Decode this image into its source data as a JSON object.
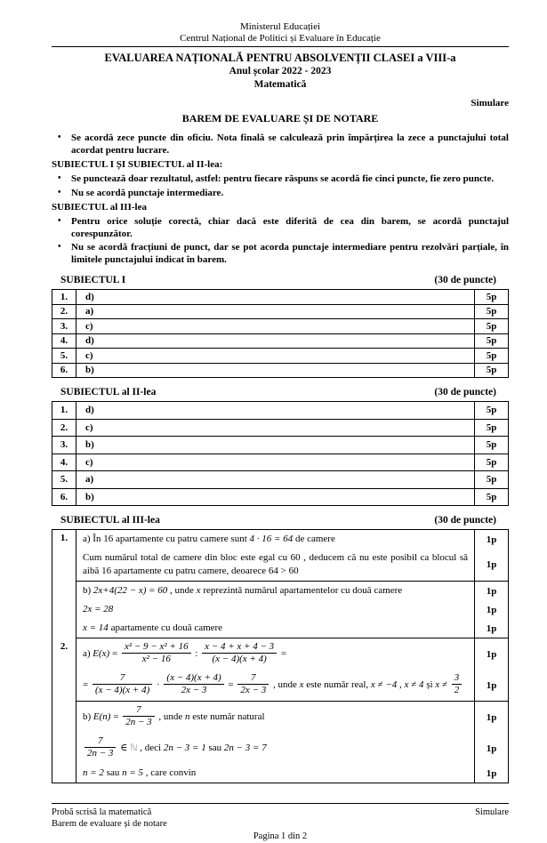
{
  "header": {
    "ministry": "Ministerul Educației",
    "center": "Centrul Național de Politici și Evaluare în Educație",
    "title": "EVALUAREA NAȚIONALĂ PENTRU ABSOLVENȚII CLASEI a VIII-a",
    "school_year": "Anul școlar 2022 - 2023",
    "subject": "Matematică",
    "session": "Simulare",
    "barem_title": "BAREM DE EVALUARE ȘI DE NOTARE"
  },
  "instructions": [
    {
      "type": "bullet",
      "text": "Se acordă zece puncte din oficiu. Nota finală se calculează prin împărțirea la zece a punctajului total acordat pentru lucrare."
    },
    {
      "type": "heading",
      "text": "SUBIECTUL I ȘI SUBIECTUL al II-lea:"
    },
    {
      "type": "bullet",
      "text": "Se punctează doar rezultatul, astfel: pentru fiecare răspuns se acordă fie cinci puncte, fie zero puncte."
    },
    {
      "type": "bullet",
      "text": "Nu se acordă punctaje intermediare."
    },
    {
      "type": "heading",
      "text": "SUBIECTUL al III-lea"
    },
    {
      "type": "bullet",
      "text": "Pentru orice soluție corectă, chiar dacă este diferită de cea din barem, se acordă punctajul corespunzător."
    },
    {
      "type": "bullet",
      "text": "Nu se acordă fracțiuni de punct, dar se pot acorda punctaje intermediare pentru rezolvări parțiale, în limitele punctajului indicat în barem."
    }
  ],
  "subject1": {
    "title": "SUBIECTUL I",
    "points_label": "(30 de puncte)",
    "rows": [
      {
        "no": "1.",
        "answer": "d)",
        "points": "5p"
      },
      {
        "no": "2.",
        "answer": "a)",
        "points": "5p"
      },
      {
        "no": "3.",
        "answer": "c)",
        "points": "5p"
      },
      {
        "no": "4.",
        "answer": "d)",
        "points": "5p"
      },
      {
        "no": "5.",
        "answer": "c)",
        "points": "5p"
      },
      {
        "no": "6.",
        "answer": "b)",
        "points": "5p"
      }
    ]
  },
  "subject2": {
    "title": "SUBIECTUL al II-lea",
    "points_label": "(30 de puncte)",
    "rows": [
      {
        "no": "1.",
        "answer": "d)",
        "points": "5p"
      },
      {
        "no": "2.",
        "answer": "c)",
        "points": "5p"
      },
      {
        "no": "3.",
        "answer": "b)",
        "points": "5p"
      },
      {
        "no": "4.",
        "answer": "c)",
        "points": "5p"
      },
      {
        "no": "5.",
        "answer": "a)",
        "points": "5p"
      },
      {
        "no": "6.",
        "answer": "b)",
        "points": "5p"
      }
    ]
  },
  "subject3": {
    "title": "SUBIECTUL al III-lea",
    "points_label": "(30 de puncte)",
    "items": [
      {
        "no": "1.",
        "blocks": [
          {
            "lines": [
              {
                "points": "1p",
                "parts": [
                  {
                    "t": "x",
                    "v": "a) În 16 apartamente cu patru camere sunt "
                  },
                  {
                    "t": "m",
                    "v": "4 · 16 = 64"
                  },
                  {
                    "t": "x",
                    "v": " de camere"
                  }
                ]
              },
              {
                "points": "1p",
                "justify": true,
                "parts": [
                  {
                    "t": "x",
                    "v": "Cum numărul total de camere din bloc este egal cu 60 , deducem că nu este posibil ca blocul să aibă 16 apartamente cu patru camere, deoarece 64 > 60"
                  }
                ]
              }
            ]
          },
          {
            "lines": [
              {
                "points": "1p",
                "parts": [
                  {
                    "t": "x",
                    "v": "b) "
                  },
                  {
                    "t": "m",
                    "v": "2x+4(22 − x) = 60"
                  },
                  {
                    "t": "x",
                    "v": " , unde  "
                  },
                  {
                    "t": "m",
                    "v": "x"
                  },
                  {
                    "t": "x",
                    "v": "  reprezintă numărul apartamentelor cu două camere"
                  }
                ]
              },
              {
                "points": "1p",
                "parts": [
                  {
                    "t": "m",
                    "v": "2x = 28"
                  }
                ]
              },
              {
                "points": "1p",
                "parts": [
                  {
                    "t": "m",
                    "v": "x = 14"
                  },
                  {
                    "t": "x",
                    "v": " apartamente cu două camere"
                  }
                ]
              }
            ]
          }
        ]
      },
      {
        "no": "2.",
        "blocks": [
          {
            "lines": [
              {
                "points": "1p",
                "parts": [
                  {
                    "t": "x",
                    "v": "a) "
                  },
                  {
                    "t": "m",
                    "v": "E(x)"
                  },
                  {
                    "t": "x",
                    "v": " = "
                  },
                  {
                    "t": "f",
                    "n": "x² − 9 − x² + 16",
                    "d": "x² − 16"
                  },
                  {
                    "t": "x",
                    "v": " : "
                  },
                  {
                    "t": "f",
                    "n": "x − 4 + x + 4 − 3",
                    "d": "(x − 4)(x + 4)"
                  },
                  {
                    "t": "x",
                    "v": " ="
                  }
                ]
              },
              {
                "points": "1p",
                "parts": [
                  {
                    "t": "x",
                    "v": "= "
                  },
                  {
                    "t": "f",
                    "n": "7",
                    "d": "(x − 4)(x + 4)"
                  },
                  {
                    "t": "x",
                    "v": " · "
                  },
                  {
                    "t": "f",
                    "n": "(x − 4)(x + 4)",
                    "d": "2x − 3"
                  },
                  {
                    "t": "x",
                    "v": " = "
                  },
                  {
                    "t": "f",
                    "n": "7",
                    "d": "2x − 3"
                  },
                  {
                    "t": "x",
                    "v": " ,  unde  "
                  },
                  {
                    "t": "m",
                    "v": "x"
                  },
                  {
                    "t": "x",
                    "v": "  este număr real,  "
                  },
                  {
                    "t": "m",
                    "v": "x ≠ −4"
                  },
                  {
                    "t": "x",
                    "v": " ,   "
                  },
                  {
                    "t": "m",
                    "v": "x ≠ 4"
                  },
                  {
                    "t": "x",
                    "v": "  și  "
                  },
                  {
                    "t": "m",
                    "v": "x ≠ "
                  },
                  {
                    "t": "f",
                    "n": "3",
                    "d": "2"
                  }
                ]
              }
            ]
          },
          {
            "lines": [
              {
                "points": "1p",
                "parts": [
                  {
                    "t": "x",
                    "v": "b) "
                  },
                  {
                    "t": "m",
                    "v": "E(n)"
                  },
                  {
                    "t": "x",
                    "v": " = "
                  },
                  {
                    "t": "f",
                    "n": "7",
                    "d": "2n − 3"
                  },
                  {
                    "t": "x",
                    "v": " ,  unde  "
                  },
                  {
                    "t": "m",
                    "v": "n"
                  },
                  {
                    "t": "x",
                    "v": "  este număr natural"
                  }
                ]
              },
              {
                "points": "1p",
                "parts": [
                  {
                    "t": "f",
                    "n": "7",
                    "d": "2n − 3"
                  },
                  {
                    "t": "x",
                    "v": " ∈ "
                  },
                  {
                    "t": "g",
                    "v": "ℕ"
                  },
                  {
                    "t": "x",
                    "v": " ,  deci  "
                  },
                  {
                    "t": "m",
                    "v": "2n − 3 = 1"
                  },
                  {
                    "t": "x",
                    "v": "  sau  "
                  },
                  {
                    "t": "m",
                    "v": "2n − 3 = 7"
                  }
                ]
              },
              {
                "points": "1p",
                "parts": [
                  {
                    "t": "m",
                    "v": "n = 2"
                  },
                  {
                    "t": "x",
                    "v": " sau "
                  },
                  {
                    "t": "m",
                    "v": "n = 5"
                  },
                  {
                    "t": "x",
                    "v": " , care convin"
                  }
                ]
              }
            ]
          }
        ]
      }
    ]
  },
  "footer": {
    "left1": "Probă scrisă la matematică",
    "left2": "Barem de evaluare și de notare",
    "right": "Simulare",
    "page": "Pagina 1 din 2"
  }
}
